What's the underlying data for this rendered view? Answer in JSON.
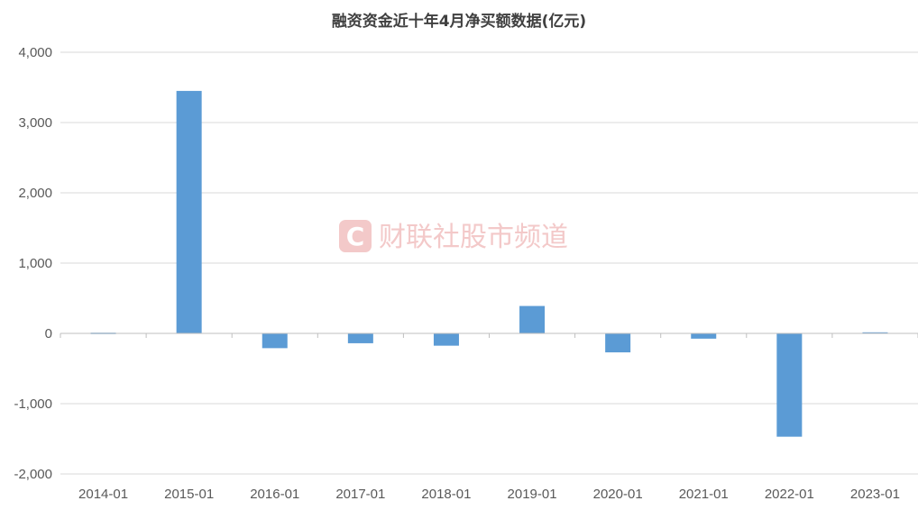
{
  "chart_data": {
    "type": "bar",
    "title": "融资资金近十年4月净买额数据(亿元)",
    "categories": [
      "2014-01",
      "2015-01",
      "2016-01",
      "2017-01",
      "2018-01",
      "2019-01",
      "2020-01",
      "2021-01",
      "2022-01",
      "2023-01"
    ],
    "values": [
      10,
      3450,
      -210,
      -140,
      -175,
      390,
      -270,
      -75,
      -1470,
      15
    ],
    "ylim": [
      -2000,
      4000
    ],
    "yticks": [
      -2000,
      -1000,
      0,
      1000,
      2000,
      3000,
      4000
    ],
    "ytick_labels": [
      "-2,000",
      "-1,000",
      "0",
      "1,000",
      "2,000",
      "3,000",
      "4,000"
    ],
    "xlabel": "",
    "ylabel": "",
    "bar_color": "#5b9bd5",
    "grid": true,
    "legend": "none"
  },
  "watermark": {
    "logo_glyph": "C",
    "text": "财联社股市频道",
    "color": "#f3c9c9"
  }
}
